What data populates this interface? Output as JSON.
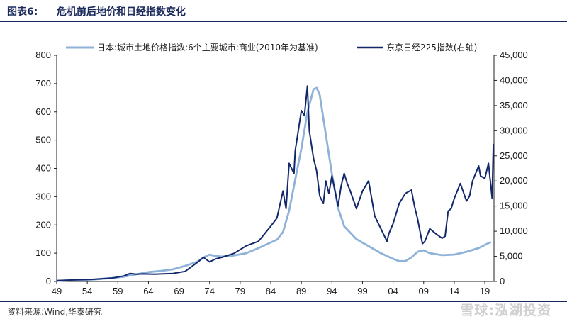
{
  "header": {
    "figure_label": "图表6:",
    "title": "危机前后地价和日经指数变化"
  },
  "footer": {
    "source": "资料来源:Wind,华泰研究",
    "watermark": "雪球:泓湖投资"
  },
  "chart_data": {
    "type": "line",
    "title": "危机前后地价和日经指数变化",
    "x_tick_labels": [
      "49",
      "54",
      "59",
      "64",
      "69",
      "74",
      "79",
      "84",
      "89",
      "94",
      "99",
      "04",
      "09",
      "14",
      "19"
    ],
    "xlim": [
      1949,
      2020.5
    ],
    "y_left": {
      "lim": [
        0,
        800
      ],
      "ticks": [
        0,
        100,
        200,
        300,
        400,
        500,
        600,
        700,
        800
      ],
      "tick_labels": [
        "0",
        "100",
        "200",
        "300",
        "400",
        "500",
        "600",
        "700",
        "800"
      ]
    },
    "y_right": {
      "lim": [
        0,
        45000
      ],
      "ticks": [
        0,
        5000,
        10000,
        15000,
        20000,
        25000,
        30000,
        35000,
        40000,
        45000
      ],
      "tick_labels": [
        "0",
        "5,000",
        "10,000",
        "15,000",
        "20,000",
        "25,000",
        "30,000",
        "35,000",
        "40,000",
        "45,000"
      ]
    },
    "legend_position": "top",
    "grid": false,
    "series": [
      {
        "name": "日本:城市土地价格指数:6个主要城市:商业(2010年为基准)",
        "axis": "left",
        "color": "#8fb2d9",
        "x": [
          1949,
          1952,
          1955,
          1958,
          1960,
          1962,
          1964,
          1966,
          1968,
          1970,
          1972,
          1973,
          1974,
          1975,
          1976,
          1978,
          1980,
          1982,
          1984,
          1985,
          1986,
          1987,
          1988,
          1989,
          1990,
          1991,
          1991.5,
          1992,
          1993,
          1994,
          1995,
          1996,
          1998,
          2000,
          2002,
          2004,
          2005,
          2006,
          2007,
          2008,
          2009,
          2010,
          2012,
          2014,
          2016,
          2018,
          2020
        ],
        "y": [
          2,
          4,
          7,
          12,
          17,
          25,
          33,
          37,
          43,
          55,
          70,
          85,
          95,
          90,
          88,
          92,
          100,
          118,
          138,
          148,
          175,
          250,
          360,
          470,
          600,
          680,
          685,
          660,
          520,
          380,
          260,
          195,
          150,
          125,
          100,
          80,
          72,
          72,
          85,
          105,
          110,
          100,
          93,
          95,
          105,
          118,
          140
        ]
      },
      {
        "name": "东京日经225指数(右轴)",
        "axis": "right",
        "color": "#13286b",
        "x": [
          1949,
          1952,
          1955,
          1958,
          1960,
          1961,
          1962,
          1963,
          1965,
          1966,
          1968,
          1970,
          1972,
          1973,
          1974,
          1975,
          1976,
          1978,
          1980,
          1982,
          1984,
          1985,
          1986,
          1986.5,
          1987,
          1987.8,
          1988,
          1989,
          1989.5,
          1989.99,
          1990.3,
          1990.8,
          1991,
          1991.5,
          1992,
          1992.6,
          1993,
          1993.5,
          1994,
          1995,
          1995.5,
          1996,
          1996.5,
          1997,
          1998,
          1999,
          2000,
          2001,
          2002,
          2003,
          2003.3,
          2004,
          2005,
          2006,
          2007,
          2007.5,
          2008,
          2008.8,
          2009.2,
          2010,
          2011,
          2012,
          2012.5,
          2013,
          2013.5,
          2014,
          2015,
          2016,
          2016.5,
          2017,
          2018,
          2018.3,
          2019,
          2019.6,
          2020.2,
          2020.4
        ],
        "y": [
          170,
          330,
          425,
          665,
          1100,
          1600,
          1450,
          1500,
          1450,
          1500,
          1600,
          2000,
          3800,
          4800,
          3900,
          4500,
          4800,
          5600,
          7100,
          8000,
          11000,
          12600,
          18000,
          14500,
          23500,
          21500,
          26000,
          34000,
          33000,
          38900,
          30000,
          26000,
          24500,
          22000,
          17000,
          15500,
          20000,
          17500,
          21000,
          15000,
          19000,
          21500,
          19500,
          18000,
          14500,
          18000,
          20000,
          13000,
          10500,
          8000,
          9500,
          11500,
          15500,
          17500,
          18200,
          15000,
          12500,
          7500,
          8000,
          10500,
          9500,
          8600,
          9000,
          14000,
          14500,
          16500,
          19500,
          16000,
          17000,
          20000,
          23000,
          21000,
          20500,
          23500,
          16500,
          27400
        ]
      }
    ]
  }
}
